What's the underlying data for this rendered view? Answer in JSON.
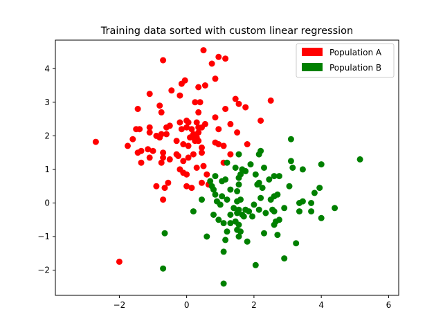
{
  "chart_data": {
    "type": "scatter",
    "title": "Training data sorted with custom linear regression",
    "xlabel": "",
    "ylabel": "",
    "xlim": [
      -3.9,
      6.3
    ],
    "ylim": [
      -2.75,
      4.85
    ],
    "xticks": [
      -2,
      0,
      2,
      4,
      6
    ],
    "yticks": [
      -2,
      -1,
      0,
      1,
      2,
      3,
      4
    ],
    "grid": false,
    "legend_position": "top-right",
    "series": [
      {
        "name": "Population A",
        "color": "#ff0000",
        "points": [
          [
            0.5,
            4.55
          ],
          [
            0.95,
            4.35
          ],
          [
            1.15,
            4.3
          ],
          [
            0.75,
            4.15
          ],
          [
            -0.7,
            4.25
          ],
          [
            0.85,
            3.7
          ],
          [
            -0.05,
            3.65
          ],
          [
            -0.15,
            3.55
          ],
          [
            0.55,
            3.5
          ],
          [
            0.35,
            3.45
          ],
          [
            -1.1,
            3.25
          ],
          [
            -0.45,
            3.35
          ],
          [
            -0.2,
            3.2
          ],
          [
            1.45,
            3.1
          ],
          [
            2.5,
            3.05
          ],
          [
            0.4,
            3.0
          ],
          [
            0.25,
            3.0
          ],
          [
            -1.45,
            2.8
          ],
          [
            -0.8,
            2.9
          ],
          [
            1.55,
            2.95
          ],
          [
            1.15,
            2.8
          ],
          [
            1.75,
            2.85
          ],
          [
            -0.75,
            2.7
          ],
          [
            0.35,
            2.7
          ],
          [
            0.85,
            2.55
          ],
          [
            2.2,
            2.45
          ],
          [
            -0.2,
            2.4
          ],
          [
            0.0,
            2.45
          ],
          [
            0.05,
            2.4
          ],
          [
            0.3,
            2.4
          ],
          [
            0.55,
            2.35
          ],
          [
            1.3,
            2.35
          ],
          [
            -1.5,
            2.2
          ],
          [
            -1.1,
            2.25
          ],
          [
            -0.6,
            2.25
          ],
          [
            -0.5,
            2.3
          ],
          [
            -1.4,
            2.2
          ],
          [
            0.0,
            2.25
          ],
          [
            0.15,
            2.2
          ],
          [
            0.35,
            2.25
          ],
          [
            -0.15,
            2.2
          ],
          [
            0.45,
            2.25
          ],
          [
            0.95,
            2.2
          ],
          [
            -1.1,
            2.1
          ],
          [
            -0.75,
            2.05
          ],
          [
            -0.6,
            2.05
          ],
          [
            0.2,
            2.05
          ],
          [
            0.35,
            2.1
          ],
          [
            -0.9,
            2.0
          ],
          [
            -0.8,
            1.95
          ],
          [
            0.1,
            1.95
          ],
          [
            0.2,
            1.95
          ],
          [
            0.3,
            1.95
          ],
          [
            1.5,
            2.1
          ],
          [
            0.35,
            1.85
          ],
          [
            0.25,
            1.85
          ],
          [
            -1.6,
            1.9
          ],
          [
            -2.7,
            1.82
          ],
          [
            -1.75,
            1.7
          ],
          [
            -0.3,
            1.85
          ],
          [
            -0.1,
            1.75
          ],
          [
            0.05,
            1.7
          ],
          [
            0.45,
            1.65
          ],
          [
            0.95,
            1.75
          ],
          [
            1.1,
            1.7
          ],
          [
            1.8,
            1.75
          ],
          [
            -1.15,
            1.6
          ],
          [
            -1.0,
            1.55
          ],
          [
            -1.35,
            1.55
          ],
          [
            -1.45,
            1.5
          ],
          [
            0.85,
            1.8
          ],
          [
            -0.7,
            1.5
          ],
          [
            -0.3,
            1.45
          ],
          [
            0.2,
            1.45
          ],
          [
            0.05,
            1.35
          ],
          [
            0.45,
            1.5
          ],
          [
            1.3,
            1.45
          ],
          [
            -1.1,
            1.35
          ],
          [
            -0.7,
            1.35
          ],
          [
            -0.5,
            1.3
          ],
          [
            -0.25,
            1.4
          ],
          [
            -1.35,
            1.2
          ],
          [
            -0.75,
            1.2
          ],
          [
            -0.1,
            1.25
          ],
          [
            0.5,
            1.1
          ],
          [
            0.3,
            1.05
          ],
          [
            1.1,
            1.2
          ],
          [
            -0.2,
            1.0
          ],
          [
            -0.1,
            0.9
          ],
          [
            0.6,
            0.85
          ],
          [
            0.0,
            0.85
          ],
          [
            -0.9,
            0.5
          ],
          [
            -0.55,
            0.6
          ],
          [
            -0.65,
            0.45
          ],
          [
            0.0,
            0.5
          ],
          [
            0.15,
            0.45
          ],
          [
            0.45,
            0.6
          ],
          [
            0.65,
            0.55
          ],
          [
            -0.7,
            0.1
          ],
          [
            -2.0,
            -1.75
          ]
        ]
      },
      {
        "name": "Population B",
        "color": "#008000",
        "points": [
          [
            3.1,
            1.9
          ],
          [
            5.15,
            1.3
          ],
          [
            2.2,
            1.55
          ],
          [
            2.15,
            1.45
          ],
          [
            1.55,
            1.45
          ],
          [
            1.2,
            1.2
          ],
          [
            1.9,
            1.15
          ],
          [
            3.1,
            1.25
          ],
          [
            3.45,
            1.0
          ],
          [
            4.0,
            1.15
          ],
          [
            1.45,
            1.05
          ],
          [
            1.65,
            1.0
          ],
          [
            1.75,
            0.95
          ],
          [
            2.3,
            1.05
          ],
          [
            3.15,
            1.05
          ],
          [
            1.6,
            0.85
          ],
          [
            2.05,
            0.85
          ],
          [
            2.6,
            0.8
          ],
          [
            2.75,
            0.8
          ],
          [
            1.15,
            0.7
          ],
          [
            0.85,
            0.8
          ],
          [
            0.7,
            0.65
          ],
          [
            1.05,
            0.65
          ],
          [
            1.55,
            0.75
          ],
          [
            2.45,
            0.7
          ],
          [
            0.75,
            0.5
          ],
          [
            0.8,
            0.4
          ],
          [
            1.3,
            0.4
          ],
          [
            1.55,
            0.55
          ],
          [
            2.1,
            0.55
          ],
          [
            2.15,
            0.6
          ],
          [
            3.05,
            0.5
          ],
          [
            3.95,
            0.45
          ],
          [
            0.85,
            0.25
          ],
          [
            1.05,
            0.2
          ],
          [
            1.5,
            0.35
          ],
          [
            2.25,
            0.45
          ],
          [
            2.7,
            0.25
          ],
          [
            2.6,
            0.2
          ],
          [
            3.8,
            0.3
          ],
          [
            0.45,
            0.1
          ],
          [
            1.2,
            0.1
          ],
          [
            1.5,
            0.05
          ],
          [
            1.6,
            0.1
          ],
          [
            2.2,
            0.15
          ],
          [
            2.5,
            0.1
          ],
          [
            3.35,
            0.0
          ],
          [
            3.45,
            0.05
          ],
          [
            3.7,
            0.0
          ],
          [
            0.9,
            0.05
          ],
          [
            1.0,
            -0.05
          ],
          [
            2.0,
            -0.05
          ],
          [
            0.2,
            -0.25
          ],
          [
            1.4,
            -0.15
          ],
          [
            1.55,
            -0.2
          ],
          [
            1.75,
            -0.2
          ],
          [
            1.85,
            -0.25
          ],
          [
            2.15,
            -0.2
          ],
          [
            2.55,
            -0.2
          ],
          [
            2.9,
            -0.15
          ],
          [
            3.35,
            -0.25
          ],
          [
            3.7,
            -0.25
          ],
          [
            4.4,
            -0.15
          ],
          [
            1.3,
            -0.35
          ],
          [
            1.5,
            -0.3
          ],
          [
            1.65,
            -0.35
          ],
          [
            2.35,
            -0.3
          ],
          [
            2.6,
            -0.25
          ],
          [
            1.7,
            -0.4
          ],
          [
            0.8,
            -0.35
          ],
          [
            1.95,
            -0.4
          ],
          [
            4.0,
            -0.45
          ],
          [
            0.95,
            -0.5
          ],
          [
            1.1,
            -0.6
          ],
          [
            1.3,
            -0.6
          ],
          [
            1.45,
            -0.55
          ],
          [
            1.55,
            -0.65
          ],
          [
            2.65,
            -0.55
          ],
          [
            2.75,
            -0.5
          ],
          [
            2.6,
            -0.65
          ],
          [
            1.5,
            -0.8
          ],
          [
            1.6,
            -0.85
          ],
          [
            1.2,
            -0.85
          ],
          [
            -0.65,
            -0.9
          ],
          [
            0.6,
            -1.0
          ],
          [
            1.55,
            -1.0
          ],
          [
            2.3,
            -0.9
          ],
          [
            2.7,
            -0.95
          ],
          [
            1.15,
            -1.1
          ],
          [
            1.8,
            -1.15
          ],
          [
            3.25,
            -1.2
          ],
          [
            1.1,
            -1.45
          ],
          [
            2.9,
            -1.65
          ],
          [
            -0.7,
            -1.95
          ],
          [
            2.05,
            -1.85
          ],
          [
            1.1,
            -2.4
          ]
        ]
      }
    ]
  }
}
